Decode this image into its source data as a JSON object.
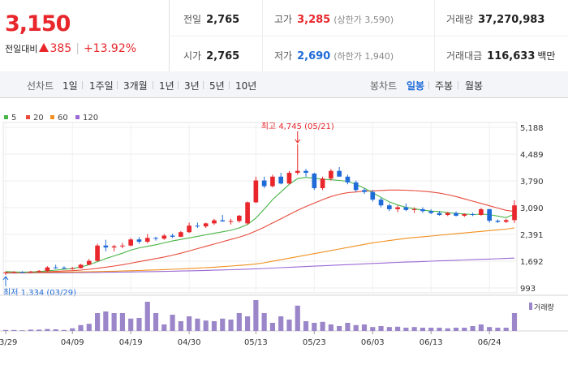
{
  "header": {
    "price": "3,150",
    "change_label": "전일대비",
    "change_amount": "385",
    "change_pct": "+13.92%",
    "stats": {
      "prev_close_label": "전일",
      "prev_close": "2,765",
      "high_label": "고가",
      "high": "3,285",
      "high_sub": "(상한가 3,590)",
      "volume_label": "거래량",
      "volume": "37,270,983",
      "open_label": "시가",
      "open": "2,765",
      "low_label": "저가",
      "low": "2,690",
      "low_sub": "(하한가 1,940)",
      "trade_value_label": "거래대금",
      "trade_value": "116,633",
      "trade_value_unit": "백만"
    }
  },
  "toolbar": {
    "line_chart_label": "선차트",
    "periods": [
      "1일",
      "1주일",
      "3개월",
      "1년",
      "3년",
      "5년",
      "10년"
    ],
    "candle_chart_label": "봉차트",
    "candle_types": [
      "일봉",
      "주봉",
      "월봉"
    ],
    "selected_candle_type": "일봉"
  },
  "colors": {
    "up": "#e8262b",
    "down": "#1f6bd8",
    "ma5": "#48b548",
    "ma20": "#e74c3c",
    "ma60": "#f0901e",
    "ma120": "#9b6ad6",
    "volume": "#9a86c8"
  },
  "chart_data": {
    "type": "candlestick",
    "legend": [
      {
        "name": "5",
        "color": "#48b548"
      },
      {
        "name": "20",
        "color": "#e74c3c"
      },
      {
        "name": "60",
        "color": "#f0901e"
      },
      {
        "name": "120",
        "color": "#9b6ad6"
      }
    ],
    "y_ticks": [
      5188,
      4489,
      3790,
      3090,
      2391,
      1692,
      993
    ],
    "y_tick_labels": [
      "5,188",
      "4,489",
      "3,790",
      "3,090",
      "2,391",
      "1,692",
      "993"
    ],
    "ylim": [
      993,
      5188
    ],
    "x_tick_labels": [
      "03/29",
      "04/09",
      "04/19",
      "04/30",
      "05/13",
      "05/23",
      "06/03",
      "06/13",
      "06/24"
    ],
    "x_tick_index": [
      0,
      8,
      15,
      22,
      30,
      37,
      44,
      51,
      58
    ],
    "annotation_high": "최고 4,745 (05/21)",
    "annotation_high_value": 4745,
    "annotation_high_index": 35,
    "annotation_low": "최저 1,334 (03/29)",
    "annotation_low_value": 1334,
    "annotation_low_index": 0,
    "volume_label": "거래량",
    "candles": [
      [
        1380,
        1420,
        1334,
        1400
      ],
      [
        1400,
        1430,
        1380,
        1410
      ],
      [
        1410,
        1430,
        1390,
        1400
      ],
      [
        1400,
        1440,
        1390,
        1420
      ],
      [
        1420,
        1460,
        1400,
        1440
      ],
      [
        1440,
        1560,
        1420,
        1530
      ],
      [
        1530,
        1600,
        1490,
        1520
      ],
      [
        1520,
        1560,
        1480,
        1500
      ],
      [
        1500,
        1540,
        1470,
        1510
      ],
      [
        1510,
        1620,
        1500,
        1600
      ],
      [
        1600,
        1750,
        1590,
        1700
      ],
      [
        1700,
        2150,
        1690,
        2100
      ],
      [
        2100,
        2250,
        1950,
        2050
      ],
      [
        2050,
        2120,
        1950,
        2080
      ],
      [
        2080,
        2170,
        2030,
        2100
      ],
      [
        2100,
        2300,
        2080,
        2260
      ],
      [
        2260,
        2320,
        2150,
        2200
      ],
      [
        2200,
        2400,
        2160,
        2300
      ],
      [
        2300,
        2330,
        2230,
        2280
      ],
      [
        2280,
        2400,
        2250,
        2360
      ],
      [
        2360,
        2410,
        2300,
        2330
      ],
      [
        2330,
        2480,
        2320,
        2450
      ],
      [
        2450,
        2700,
        2430,
        2620
      ],
      [
        2620,
        2700,
        2560,
        2600
      ],
      [
        2600,
        2700,
        2560,
        2680
      ],
      [
        2680,
        2800,
        2640,
        2760
      ],
      [
        2760,
        2900,
        2720,
        2730
      ],
      [
        2730,
        2800,
        2650,
        2740
      ],
      [
        2740,
        2900,
        2700,
        2880
      ],
      [
        2680,
        3250,
        2650,
        3230
      ],
      [
        3230,
        3900,
        3210,
        3800
      ],
      [
        3800,
        3900,
        3600,
        3650
      ],
      [
        3650,
        3950,
        3620,
        3900
      ],
      [
        3900,
        4000,
        3700,
        3720
      ],
      [
        3720,
        4050,
        3700,
        4000
      ],
      [
        4000,
        4745,
        3950,
        4050
      ],
      [
        4050,
        4100,
        3900,
        4000
      ],
      [
        3980,
        4000,
        3550,
        3600
      ],
      [
        3600,
        3900,
        3550,
        3850
      ],
      [
        3850,
        4100,
        3800,
        4050
      ],
      [
        4050,
        4150,
        3900,
        3900
      ],
      [
        3900,
        3950,
        3700,
        3750
      ],
      [
        3750,
        3800,
        3500,
        3550
      ],
      [
        3550,
        3600,
        3450,
        3500
      ],
      [
        3500,
        3550,
        3250,
        3300
      ],
      [
        3300,
        3350,
        3100,
        3150
      ],
      [
        3150,
        3200,
        3000,
        3050
      ],
      [
        3050,
        3150,
        2970,
        3100
      ],
      [
        3100,
        3200,
        3000,
        3030
      ],
      [
        3030,
        3100,
        2950,
        3050
      ],
      [
        3050,
        3100,
        2950,
        3000
      ],
      [
        3000,
        3050,
        2920,
        2950
      ],
      [
        2950,
        3000,
        2880,
        2900
      ],
      [
        2900,
        2980,
        2870,
        2950
      ],
      [
        2950,
        2990,
        2860,
        2880
      ],
      [
        2880,
        2940,
        2850,
        2920
      ],
      [
        2920,
        2960,
        2870,
        2900
      ],
      [
        2900,
        3080,
        2880,
        3050
      ],
      [
        3050,
        3060,
        2700,
        2750
      ],
      [
        2750,
        2780,
        2690,
        2720
      ],
      [
        2720,
        2800,
        2690,
        2765
      ],
      [
        2765,
        3285,
        2690,
        3150
      ]
    ],
    "ma5": [
      1420,
      1410,
      1405,
      1410,
      1420,
      1440,
      1460,
      1480,
      1500,
      1540,
      1600,
      1680,
      1760,
      1830,
      1900,
      1980,
      2040,
      2080,
      2120,
      2170,
      2220,
      2260,
      2300,
      2340,
      2380,
      2420,
      2460,
      2500,
      2560,
      2650,
      2820,
      3050,
      3300,
      3500,
      3700,
      3850,
      3880,
      3860,
      3830,
      3820,
      3800,
      3780,
      3700,
      3600,
      3480,
      3360,
      3240,
      3160,
      3100,
      3060,
      3030,
      3000,
      2990,
      2960,
      2940,
      2925,
      2910,
      2920,
      2910,
      2870,
      2830,
      2920
    ],
    "ma20": [
      1400,
      1400,
      1402,
      1405,
      1410,
      1415,
      1425,
      1435,
      1445,
      1460,
      1480,
      1505,
      1535,
      1565,
      1600,
      1640,
      1680,
      1720,
      1760,
      1800,
      1850,
      1900,
      1960,
      2020,
      2080,
      2140,
      2200,
      2260,
      2320,
      2390,
      2480,
      2580,
      2690,
      2800,
      2910,
      3020,
      3120,
      3210,
      3300,
      3380,
      3440,
      3480,
      3500,
      3520,
      3530,
      3540,
      3550,
      3550,
      3545,
      3535,
      3520,
      3500,
      3470,
      3430,
      3380,
      3320,
      3260,
      3200,
      3140,
      3080,
      3020,
      2990
    ],
    "ma60": [
      1390,
      1392,
      1394,
      1396,
      1398,
      1400,
      1403,
      1406,
      1409,
      1412,
      1416,
      1420,
      1425,
      1430,
      1436,
      1442,
      1449,
      1456,
      1464,
      1472,
      1481,
      1490,
      1500,
      1511,
      1523,
      1536,
      1550,
      1565,
      1581,
      1598,
      1620,
      1650,
      1690,
      1730,
      1770,
      1810,
      1850,
      1890,
      1930,
      1970,
      2010,
      2050,
      2090,
      2130,
      2170,
      2200,
      2230,
      2260,
      2290,
      2310,
      2330,
      2350,
      2370,
      2390,
      2410,
      2430,
      2450,
      2470,
      2490,
      2510,
      2530,
      2560
    ],
    "ma120": [
      1380,
      1381,
      1382,
      1383,
      1384,
      1385,
      1387,
      1389,
      1391,
      1393,
      1395,
      1398,
      1401,
      1404,
      1407,
      1410,
      1414,
      1418,
      1422,
      1426,
      1430,
      1435,
      1440,
      1445,
      1451,
      1457,
      1463,
      1470,
      1477,
      1484,
      1492,
      1502,
      1512,
      1522,
      1532,
      1542,
      1552,
      1562,
      1572,
      1582,
      1592,
      1602,
      1612,
      1622,
      1632,
      1642,
      1652,
      1660,
      1668,
      1676,
      1684,
      1692,
      1700,
      1708,
      1716,
      1724,
      1732,
      1740,
      1748,
      1756,
      1764,
      1772
    ],
    "volume": [
      0.03,
      0.03,
      0.02,
      0.04,
      0.04,
      0.06,
      0.05,
      0.03,
      0.08,
      0.18,
      0.22,
      0.55,
      0.6,
      0.55,
      0.55,
      0.38,
      0.4,
      0.9,
      0.55,
      0.2,
      0.5,
      0.3,
      0.45,
      0.38,
      0.32,
      0.3,
      0.38,
      0.35,
      0.55,
      0.45,
      0.95,
      0.55,
      0.25,
      0.45,
      0.35,
      0.78,
      0.3,
      0.25,
      0.28,
      0.2,
      0.15,
      0.25,
      0.18,
      0.2,
      0.12,
      0.15,
      0.12,
      0.13,
      0.1,
      0.12,
      0.1,
      0.1,
      0.1,
      0.08,
      0.1,
      0.1,
      0.15,
      0.2,
      0.12,
      0.1,
      0.1,
      0.55
    ]
  }
}
